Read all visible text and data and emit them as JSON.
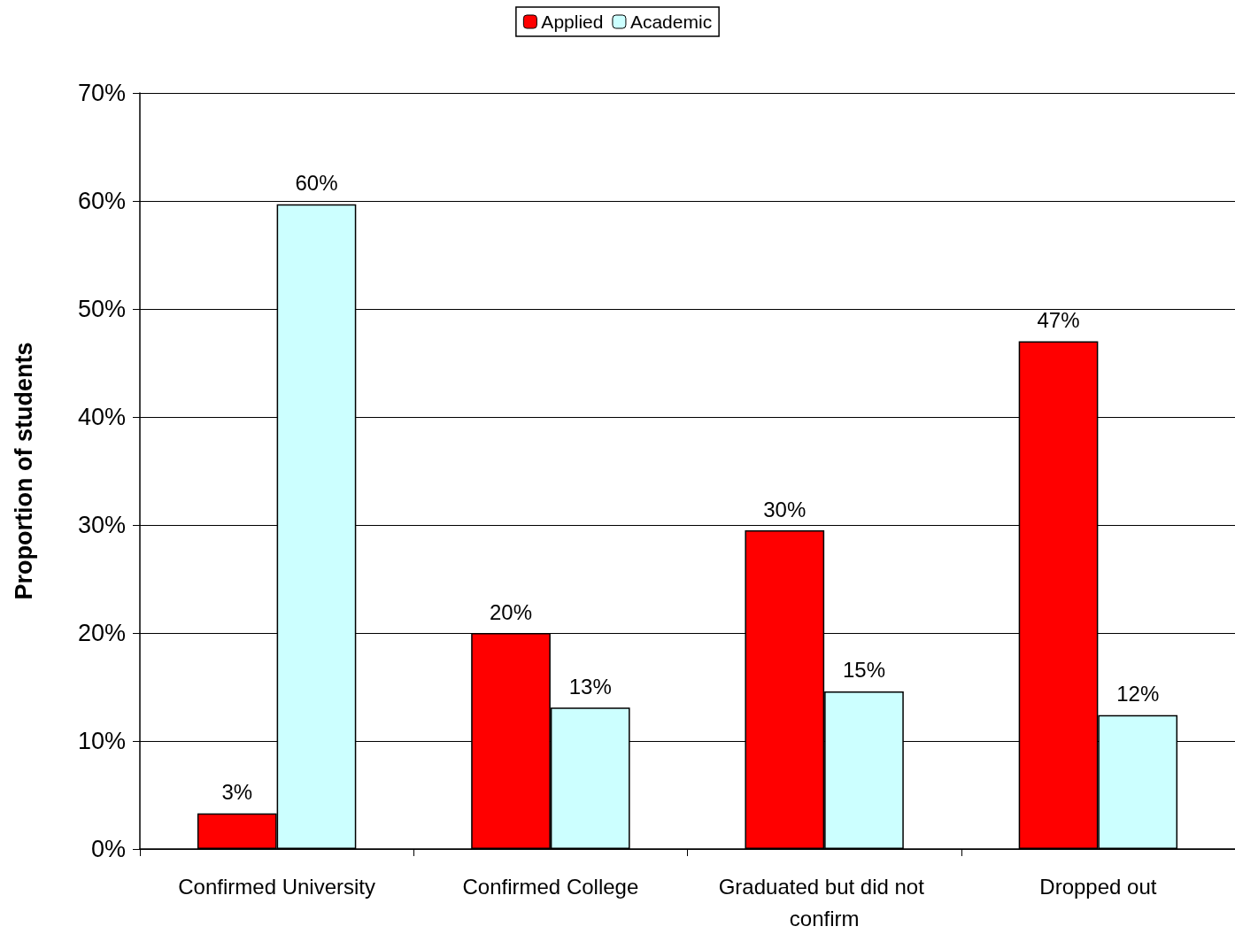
{
  "chart_data": {
    "type": "bar",
    "ylabel": "Proportion of students",
    "categories": [
      "Confirmed University",
      "Confirmed College",
      "Graduated but did not confirm",
      "Dropped out"
    ],
    "series": [
      {
        "name": "Applied",
        "color": "#ff0000",
        "values": [
          3.3,
          20.0,
          29.5,
          47.0
        ],
        "value_labels": [
          "3%",
          "20%",
          "30%",
          "47%"
        ]
      },
      {
        "name": "Academic",
        "color": "#ccffff",
        "values": [
          59.7,
          13.1,
          14.6,
          12.4
        ],
        "value_labels": [
          "60%",
          "13%",
          "15%",
          "12%"
        ]
      }
    ],
    "ylim": [
      0,
      70
    ],
    "yticks": [
      {
        "value": 0,
        "label": "0%"
      },
      {
        "value": 10,
        "label": "10%"
      },
      {
        "value": 20,
        "label": "20%"
      },
      {
        "value": 30,
        "label": "30%"
      },
      {
        "value": 40,
        "label": "40%"
      },
      {
        "value": 50,
        "label": "50%"
      },
      {
        "value": 60,
        "label": "60%"
      },
      {
        "value": 70,
        "label": "70%"
      }
    ],
    "grid": "y",
    "legend": "top"
  }
}
